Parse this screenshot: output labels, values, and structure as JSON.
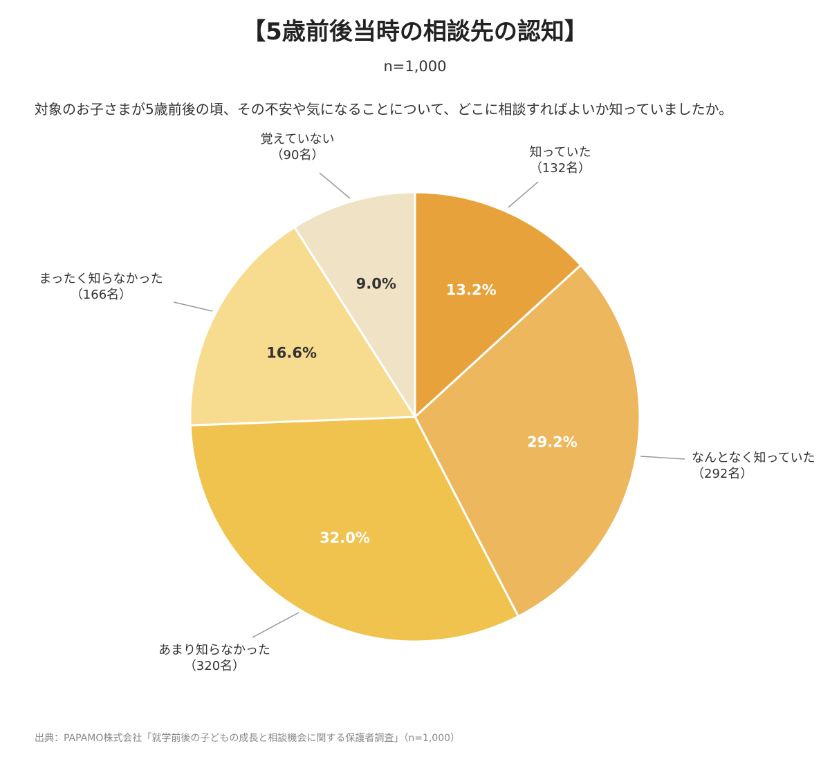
{
  "header": {
    "title": "【5歳前後当時の相談先の認知】",
    "sample": "n=1,000",
    "question": "対象のお子さまが5歳前後の頃、その不安や気になることについて、どこに相談すればよいか知っていましたか。"
  },
  "footer": {
    "source": "出典：PAPAMO株式会社「就学前後の子どもの成長と相談機会に関する保護者調査」（n=1,000）"
  },
  "chart_data": {
    "type": "pie",
    "start": "12 o'clock, clockwise",
    "slices": [
      {
        "label": "知っていた",
        "count_label": "（132名）",
        "value": 13.2,
        "pct_label": "13.2%",
        "color": "#E8A23C",
        "pct_color": "#ffffff"
      },
      {
        "label": "なんとなく知っていた",
        "count_label": "（292名）",
        "value": 29.2,
        "pct_label": "29.2%",
        "color": "#EDB75E",
        "pct_color": "#ffffff"
      },
      {
        "label": "あまり知らなかった",
        "count_label": "（320名）",
        "value": 32.0,
        "pct_label": "32.0%",
        "color": "#F0C24E",
        "pct_color": "#ffffff"
      },
      {
        "label": "まったく知らなかった",
        "count_label": "（166名）",
        "value": 16.6,
        "pct_label": "16.6%",
        "color": "#F7DB8E",
        "pct_color": "#333333"
      },
      {
        "label": "覚えていない",
        "count_label": "（90名）",
        "value": 9.0,
        "pct_label": "9.0%",
        "color": "#F0E3C5",
        "pct_color": "#333333"
      }
    ]
  }
}
